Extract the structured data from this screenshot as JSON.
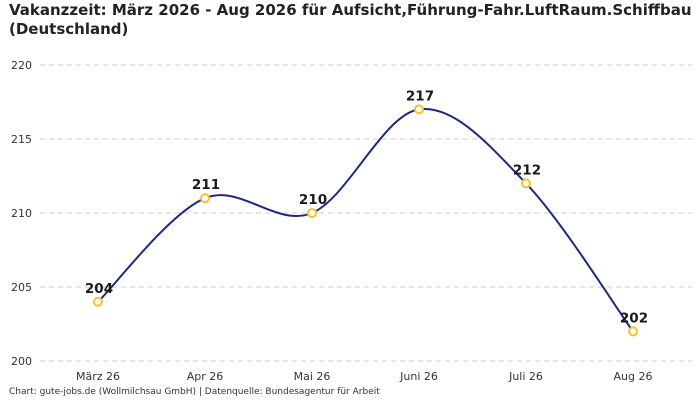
{
  "chart_data": {
    "type": "line",
    "title": "Vakanzzeit: März 2026 - Aug 2026 für Aufsicht,Führung-Fahr.LuftRaum.Schiffbau (Deutschland)",
    "categories": [
      "März 26",
      "Apr 26",
      "Mai 26",
      "Juni 26",
      "Juli 26",
      "Aug 26"
    ],
    "series": [
      {
        "values": [
          204,
          211,
          210,
          217,
          212,
          202
        ]
      }
    ],
    "ylim": [
      200,
      220
    ],
    "yticks": [
      200,
      205,
      210,
      215,
      220
    ],
    "grid": true,
    "curve": "smooth",
    "colors": {
      "line": "#1b2a80",
      "marker": "#f5c22b",
      "grid": "#cccccc"
    }
  },
  "footer": "Chart: gute-jobs.de (Wollmilchsau GmbH) | Datenquelle: Bundesagentur für Arbeit"
}
